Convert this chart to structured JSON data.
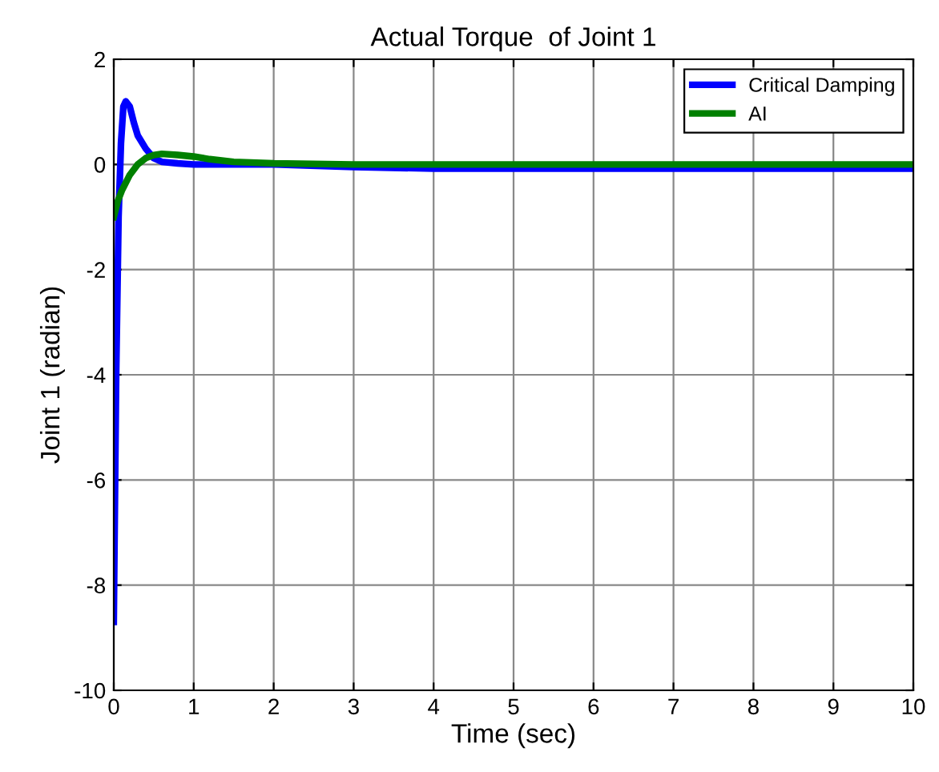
{
  "chart_data": {
    "type": "line",
    "title": "Actual Torque  of Joint 1",
    "xlabel": "Time (sec)",
    "ylabel": "Joint 1 (radian)",
    "xlim": [
      0,
      10
    ],
    "ylim": [
      -10,
      2
    ],
    "xticks": [
      0,
      1,
      2,
      3,
      4,
      5,
      6,
      7,
      8,
      9,
      10
    ],
    "yticks": [
      -10,
      -8,
      -6,
      -4,
      -2,
      0,
      2
    ],
    "grid": true,
    "legend": "top right",
    "line_style": "solid",
    "marker": "none",
    "series": [
      {
        "name": "Critical Damping",
        "color": "#0000ff",
        "x": [
          0,
          0.03,
          0.06,
          0.09,
          0.12,
          0.15,
          0.2,
          0.25,
          0.3,
          0.4,
          0.5,
          0.6,
          0.8,
          1,
          2,
          3,
          4,
          5,
          6,
          7,
          8,
          9,
          10
        ],
        "values": [
          -8.7,
          -4,
          -1,
          0.4,
          1.1,
          1.2,
          1.1,
          0.8,
          0.55,
          0.3,
          0.12,
          0.05,
          0.02,
          0,
          0,
          -0.05,
          -0.08,
          -0.08,
          -0.08,
          -0.08,
          -0.08,
          -0.08,
          -0.08
        ]
      },
      {
        "name": "AI",
        "color": "#008000",
        "x": [
          0,
          0.05,
          0.1,
          0.2,
          0.3,
          0.4,
          0.5,
          0.6,
          0.8,
          1,
          1.2,
          1.5,
          2,
          3,
          4,
          5,
          6,
          7,
          8,
          9,
          10
        ],
        "values": [
          -1,
          -0.7,
          -0.5,
          -0.2,
          0,
          0.12,
          0.18,
          0.2,
          0.18,
          0.15,
          0.1,
          0.05,
          0.02,
          0,
          0,
          0,
          0,
          0,
          0,
          0,
          0
        ]
      }
    ]
  }
}
